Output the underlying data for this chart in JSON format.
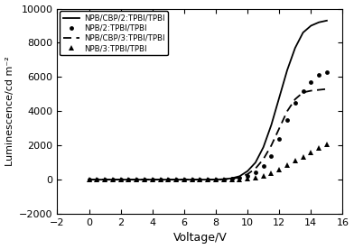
{
  "title": "",
  "xlabel": "Voltage/V",
  "ylabel": "Luminescence/cd m⁻²",
  "xlim": [
    -2,
    16
  ],
  "ylim": [
    -2000,
    10000
  ],
  "xticks": [
    -2,
    0,
    2,
    4,
    6,
    8,
    10,
    12,
    14,
    16
  ],
  "yticks": [
    -2000,
    0,
    2000,
    4000,
    6000,
    8000,
    10000
  ],
  "legend": [
    "NPB/CBP/2:TPBI/TPBI",
    "NPB/2:TPBI/TPBI",
    "NPB/CBP/3:TPBI/TPBI",
    "NPB/3:TPBI/TPBI"
  ],
  "series": {
    "cbp2_line": {
      "voltage": [
        0,
        1,
        2,
        3,
        4,
        5,
        6,
        7,
        7.5,
        8,
        8.5,
        9,
        9.5,
        10,
        10.5,
        11,
        11.5,
        12,
        12.5,
        13,
        13.5,
        14,
        14.5,
        15
      ],
      "lum": [
        0,
        0,
        0,
        0,
        0,
        0,
        0,
        0,
        2,
        8,
        25,
        80,
        200,
        500,
        1000,
        1900,
        3200,
        4800,
        6400,
        7700,
        8600,
        9000,
        9200,
        9300
      ]
    },
    "no_cbp2_dots": {
      "voltage": [
        0,
        0.5,
        1,
        1.5,
        2,
        2.5,
        3,
        3.5,
        4,
        4.5,
        5,
        5.5,
        6,
        6.5,
        7,
        7.5,
        8,
        8.5,
        9,
        9.5,
        10,
        10.5,
        11,
        11.5,
        12,
        12.5,
        13,
        13.5,
        14,
        14.5,
        15
      ],
      "lum": [
        0,
        0,
        0,
        0,
        0,
        0,
        0,
        0,
        0,
        0,
        0,
        0,
        0,
        0,
        0,
        0,
        3,
        10,
        35,
        90,
        220,
        450,
        800,
        1400,
        2400,
        3500,
        4500,
        5200,
        5700,
        6100,
        6300
      ]
    },
    "cbp3_dash": {
      "voltage": [
        0,
        1,
        2,
        3,
        4,
        5,
        6,
        7,
        7.5,
        8,
        8.5,
        9,
        9.5,
        10,
        10.5,
        11,
        11.5,
        12,
        12.5,
        13,
        13.5,
        14,
        14.5,
        15
      ],
      "lum": [
        0,
        0,
        0,
        0,
        0,
        0,
        0,
        0,
        1,
        5,
        15,
        50,
        130,
        320,
        650,
        1200,
        2000,
        3000,
        4000,
        4700,
        5100,
        5200,
        5250,
        5300
      ]
    },
    "no_cbp3_tri": {
      "voltage": [
        0,
        0.5,
        1,
        1.5,
        2,
        2.5,
        3,
        3.5,
        4,
        4.5,
        5,
        5.5,
        6,
        6.5,
        7,
        7.5,
        8,
        8.5,
        9,
        9.5,
        10,
        10.5,
        11,
        11.5,
        12,
        12.5,
        13,
        13.5,
        14,
        14.5,
        15
      ],
      "lum": [
        0,
        0,
        0,
        0,
        0,
        0,
        0,
        0,
        0,
        0,
        0,
        0,
        0,
        0,
        0,
        0,
        0,
        2,
        8,
        20,
        55,
        120,
        220,
        380,
        600,
        850,
        1100,
        1350,
        1600,
        1830,
        2050
      ]
    }
  }
}
